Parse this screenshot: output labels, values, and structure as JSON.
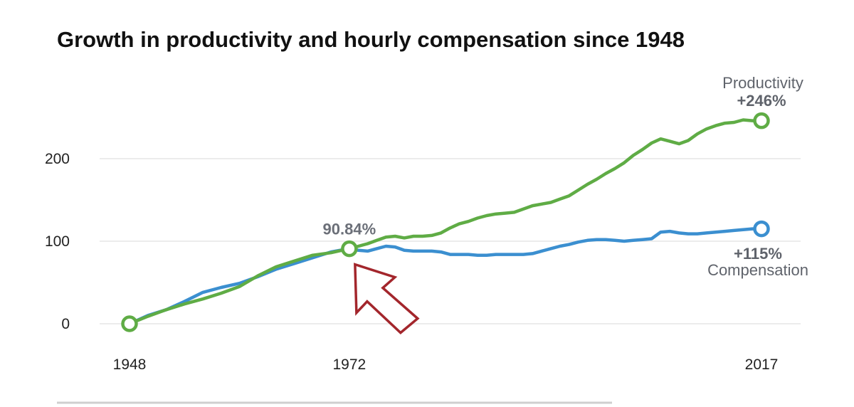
{
  "chart_data": {
    "type": "line",
    "title": "Growth in productivity and hourly compensation since 1948",
    "xlabel": "",
    "ylabel": "",
    "xlim": [
      1948,
      2017
    ],
    "ylim": [
      0,
      250
    ],
    "grid": true,
    "y_ticks": [
      0,
      100,
      200
    ],
    "y_tick_labels": [
      "0",
      "100",
      "200"
    ],
    "x_ticks": [
      1948,
      1972,
      2017
    ],
    "x_tick_labels": [
      "1948",
      "1972",
      "2017"
    ],
    "series": [
      {
        "name": "Productivity",
        "color": "#5fac45",
        "x": [
          1948,
          1950,
          1952,
          1954,
          1956,
          1958,
          1960,
          1962,
          1964,
          1966,
          1968,
          1970,
          1972,
          1973,
          1974,
          1975,
          1976,
          1977,
          1978,
          1979,
          1980,
          1981,
          1982,
          1983,
          1984,
          1985,
          1986,
          1987,
          1988,
          1989,
          1990,
          1991,
          1992,
          1993,
          1994,
          1995,
          1996,
          1997,
          1998,
          1999,
          2000,
          2001,
          2002,
          2003,
          2004,
          2005,
          2006,
          2007,
          2008,
          2009,
          2010,
          2011,
          2012,
          2013,
          2014,
          2015,
          2016,
          2017
        ],
        "values": [
          0,
          9,
          17,
          24,
          30,
          37,
          45,
          58,
          69,
          76,
          83,
          86,
          91,
          94,
          97,
          101,
          105,
          106,
          104,
          106,
          106,
          107,
          110,
          116,
          121,
          124,
          128,
          131,
          133,
          134,
          135,
          139,
          143,
          145,
          147,
          151,
          155,
          162,
          169,
          175,
          182,
          188,
          195,
          204,
          211,
          219,
          224,
          221,
          218,
          222,
          230,
          236,
          240,
          243,
          244,
          247,
          246,
          246
        ]
      },
      {
        "name": "Compensation",
        "color": "#3b8fd0",
        "x": [
          1948,
          1950,
          1952,
          1954,
          1956,
          1958,
          1960,
          1962,
          1964,
          1966,
          1968,
          1970,
          1972,
          1973,
          1974,
          1975,
          1976,
          1977,
          1978,
          1979,
          1980,
          1981,
          1982,
          1983,
          1984,
          1985,
          1986,
          1987,
          1988,
          1989,
          1990,
          1991,
          1992,
          1993,
          1994,
          1995,
          1996,
          1997,
          1998,
          1999,
          2000,
          2001,
          2002,
          2003,
          2004,
          2005,
          2006,
          2007,
          2008,
          2009,
          2010,
          2011,
          2012,
          2013,
          2014,
          2015,
          2016,
          2017
        ],
        "values": [
          0,
          10,
          17,
          27,
          38,
          44,
          49,
          57,
          66,
          73,
          80,
          87,
          91,
          89,
          88,
          91,
          94,
          93,
          89,
          88,
          88,
          88,
          87,
          84,
          84,
          84,
          83,
          83,
          84,
          84,
          84,
          84,
          85,
          88,
          91,
          94,
          96,
          99,
          101,
          102,
          102,
          101,
          100,
          101,
          102,
          103,
          111,
          112,
          110,
          109,
          109,
          110,
          111,
          112,
          113,
          114,
          115,
          115
        ]
      }
    ],
    "annotations": [
      {
        "id": "divergence",
        "text": "90.84%",
        "x": 1972,
        "y": 90.84,
        "color": "#6b6f78"
      },
      {
        "id": "productivity-end",
        "label": "Productivity",
        "value_text": "+246%",
        "x": 2017,
        "y": 246
      },
      {
        "id": "compensation-end",
        "label": "Compensation",
        "value_text": "+115%",
        "x": 2017,
        "y": 115
      },
      {
        "id": "arrow",
        "description": "red outlined arrow pointing at 1972 divergence point",
        "color": "#a3262c"
      }
    ],
    "colors": {
      "productivity": "#5fac45",
      "compensation": "#3b8fd0",
      "grid": "#e6e6e6",
      "annotation_text": "#5f636b",
      "arrow": "#a3262c"
    }
  }
}
